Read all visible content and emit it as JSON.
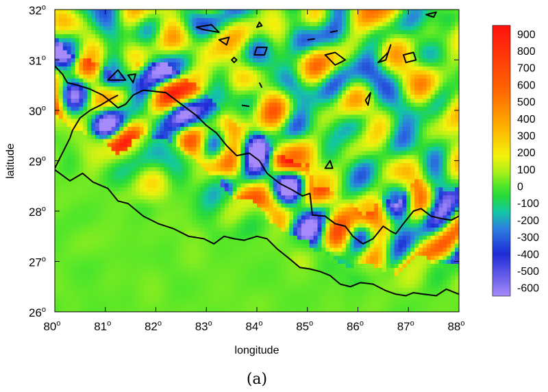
{
  "chart_data": {
    "type": "heatmap",
    "title": "",
    "caption": "(a)",
    "xlabel": "longitude",
    "ylabel": "latitude",
    "xlim": [
      80,
      88
    ],
    "ylim": [
      26,
      32
    ],
    "x_ticks": [
      {
        "value": 80,
        "label": "80",
        "sup": "o"
      },
      {
        "value": 81,
        "label": "81",
        "sup": "o"
      },
      {
        "value": 82,
        "label": "82",
        "sup": "o"
      },
      {
        "value": 83,
        "label": "83",
        "sup": "o"
      },
      {
        "value": 84,
        "label": "84",
        "sup": "o"
      },
      {
        "value": 85,
        "label": "85",
        "sup": "o"
      },
      {
        "value": 86,
        "label": "86",
        "sup": "o"
      },
      {
        "value": 87,
        "label": "87",
        "sup": "o"
      },
      {
        "value": 88,
        "label": "88",
        "sup": "o"
      }
    ],
    "y_ticks": [
      {
        "value": 26,
        "label": "26",
        "sup": "o"
      },
      {
        "value": 27,
        "label": "27",
        "sup": "o"
      },
      {
        "value": 28,
        "label": "28",
        "sup": "o"
      },
      {
        "value": 29,
        "label": "29",
        "sup": "o"
      },
      {
        "value": 30,
        "label": "30",
        "sup": "o"
      },
      {
        "value": 31,
        "label": "31",
        "sup": "o"
      },
      {
        "value": 32,
        "label": "32",
        "sup": "o"
      }
    ],
    "colorbar": {
      "min": -650,
      "max": 950,
      "labels": [
        "900",
        "800",
        "700",
        "600",
        "500",
        "400",
        "300",
        "200",
        "100",
        "0",
        "-100",
        "-200",
        "-300",
        "-400",
        "-500",
        "-600"
      ],
      "label_values": [
        900,
        800,
        700,
        600,
        500,
        400,
        300,
        200,
        100,
        0,
        -100,
        -200,
        -300,
        -400,
        -500,
        -600
      ],
      "colormap": [
        {
          "v": -650,
          "c": "#a78bfa"
        },
        {
          "v": -400,
          "c": "#1d2bd6"
        },
        {
          "v": -250,
          "c": "#2d7fe0"
        },
        {
          "v": -150,
          "c": "#12c8a0"
        },
        {
          "v": -60,
          "c": "#27d93a"
        },
        {
          "v": 0,
          "c": "#4fe62a"
        },
        {
          "v": 80,
          "c": "#a8f01a"
        },
        {
          "v": 180,
          "c": "#f4f20c"
        },
        {
          "v": 350,
          "c": "#ffb000"
        },
        {
          "v": 550,
          "c": "#ff6a00"
        },
        {
          "v": 950,
          "c": "#ff1010"
        }
      ]
    },
    "field": {
      "baseline": 20,
      "grid_resolution": 0.08,
      "description_free": true
    },
    "boundaries": [
      {
        "name": "",
        "points": [
          [
            80.0,
            30.88
          ],
          [
            80.15,
            30.72
          ],
          [
            80.25,
            30.55
          ],
          [
            80.45,
            30.5
          ],
          [
            80.7,
            30.42
          ],
          [
            80.95,
            30.3
          ],
          [
            81.1,
            30.18
          ],
          [
            81.25,
            30.05
          ],
          [
            81.4,
            30.12
          ],
          [
            81.55,
            30.3
          ],
          [
            81.75,
            30.4
          ],
          [
            81.95,
            30.38
          ],
          [
            82.2,
            30.35
          ],
          [
            82.4,
            30.2
          ],
          [
            82.6,
            30.05
          ],
          [
            82.8,
            29.9
          ],
          [
            83.0,
            29.7
          ],
          [
            83.2,
            29.55
          ],
          [
            83.4,
            29.3
          ],
          [
            83.6,
            29.1
          ],
          [
            83.85,
            29.15
          ],
          [
            84.05,
            29.0
          ],
          [
            84.2,
            28.75
          ],
          [
            84.45,
            28.55
          ],
          [
            84.7,
            28.42
          ],
          [
            84.9,
            28.3
          ],
          [
            85.05,
            28.35
          ],
          [
            85.1,
            27.92
          ],
          [
            85.35,
            27.9
          ],
          [
            85.55,
            27.75
          ],
          [
            85.75,
            27.7
          ],
          [
            85.9,
            27.5
          ],
          [
            86.1,
            27.35
          ],
          [
            86.3,
            27.45
          ],
          [
            86.5,
            27.7
          ],
          [
            86.65,
            27.6
          ],
          [
            86.75,
            27.55
          ],
          [
            86.9,
            27.75
          ],
          [
            87.1,
            28.0
          ],
          [
            87.25,
            28.05
          ],
          [
            87.45,
            27.9
          ],
          [
            87.65,
            27.85
          ],
          [
            87.85,
            27.82
          ],
          [
            88.0,
            27.9
          ]
        ]
      },
      {
        "name": "",
        "points": [
          [
            80.0,
            28.85
          ],
          [
            80.1,
            29.05
          ],
          [
            80.2,
            29.25
          ],
          [
            80.3,
            29.45
          ],
          [
            80.35,
            29.6
          ],
          [
            80.5,
            29.85
          ],
          [
            80.7,
            30.0
          ],
          [
            80.9,
            30.1
          ],
          [
            81.1,
            30.22
          ],
          [
            81.25,
            30.3
          ]
        ]
      },
      {
        "name": "",
        "points": [
          [
            80.0,
            28.82
          ],
          [
            80.3,
            28.6
          ],
          [
            80.55,
            28.75
          ],
          [
            80.75,
            28.58
          ],
          [
            81.05,
            28.45
          ],
          [
            81.25,
            28.2
          ],
          [
            81.45,
            28.15
          ],
          [
            81.75,
            27.9
          ],
          [
            82.05,
            27.75
          ],
          [
            82.35,
            27.65
          ],
          [
            82.65,
            27.5
          ],
          [
            82.95,
            27.45
          ],
          [
            83.15,
            27.35
          ],
          [
            83.35,
            27.5
          ],
          [
            83.55,
            27.45
          ],
          [
            83.75,
            27.42
          ],
          [
            84.0,
            27.5
          ],
          [
            84.2,
            27.45
          ],
          [
            84.4,
            27.25
          ],
          [
            84.65,
            27.05
          ],
          [
            84.85,
            26.88
          ],
          [
            85.05,
            26.85
          ],
          [
            85.25,
            26.8
          ],
          [
            85.45,
            26.72
          ],
          [
            85.65,
            26.55
          ],
          [
            85.85,
            26.5
          ],
          [
            86.05,
            26.58
          ],
          [
            86.3,
            26.55
          ],
          [
            86.55,
            26.42
          ],
          [
            86.75,
            26.35
          ],
          [
            86.95,
            26.32
          ],
          [
            87.1,
            26.38
          ],
          [
            87.3,
            26.35
          ],
          [
            87.55,
            26.32
          ],
          [
            87.75,
            26.45
          ],
          [
            88.0,
            26.35
          ]
        ]
      },
      {
        "name": "",
        "points": [
          [
            82.8,
            31.65
          ],
          [
            83.1,
            31.7
          ],
          [
            83.25,
            31.55
          ],
          [
            82.95,
            31.6
          ],
          [
            82.8,
            31.65
          ]
        ],
        "closed": true
      },
      {
        "name": "",
        "points": [
          [
            83.25,
            31.4
          ],
          [
            83.45,
            31.45
          ],
          [
            83.4,
            31.3
          ],
          [
            83.25,
            31.4
          ]
        ],
        "closed": true
      },
      {
        "name": "",
        "points": [
          [
            83.55,
            30.95
          ],
          [
            83.6,
            31.0
          ],
          [
            83.55,
            31.05
          ],
          [
            83.5,
            31.0
          ],
          [
            83.55,
            30.95
          ]
        ],
        "closed": true
      },
      {
        "name": "",
        "points": [
          [
            84.0,
            31.25
          ],
          [
            84.2,
            31.25
          ],
          [
            84.15,
            31.1
          ],
          [
            83.95,
            31.1
          ],
          [
            84.0,
            31.25
          ]
        ],
        "closed": true
      },
      {
        "name": "",
        "points": [
          [
            85.35,
            31.1
          ],
          [
            85.55,
            31.15
          ],
          [
            85.75,
            31.0
          ],
          [
            85.55,
            30.9
          ],
          [
            85.35,
            31.1
          ]
        ],
        "closed": true
      },
      {
        "name": "",
        "points": [
          [
            86.4,
            30.95
          ],
          [
            86.6,
            31.15
          ],
          [
            86.65,
            31.3
          ],
          [
            86.55,
            31.0
          ],
          [
            86.4,
            30.95
          ]
        ],
        "closed": true
      },
      {
        "name": "",
        "points": [
          [
            86.9,
            31.1
          ],
          [
            87.1,
            31.15
          ],
          [
            87.15,
            31.0
          ],
          [
            86.95,
            30.95
          ],
          [
            86.9,
            31.1
          ]
        ],
        "closed": true
      },
      {
        "name": "",
        "points": [
          [
            81.05,
            30.6
          ],
          [
            81.25,
            30.8
          ],
          [
            81.4,
            30.6
          ],
          [
            81.05,
            30.6
          ]
        ],
        "closed": true
      },
      {
        "name": "",
        "points": [
          [
            81.45,
            30.7
          ],
          [
            81.6,
            30.72
          ],
          [
            81.55,
            30.55
          ],
          [
            81.45,
            30.7
          ]
        ],
        "closed": true
      },
      {
        "name": "",
        "points": [
          [
            87.35,
            31.9
          ],
          [
            87.55,
            31.95
          ],
          [
            87.5,
            31.85
          ],
          [
            87.35,
            31.9
          ]
        ],
        "closed": true
      },
      {
        "name": "",
        "points": [
          [
            86.15,
            30.2
          ],
          [
            86.25,
            30.35
          ],
          [
            86.2,
            30.1
          ],
          [
            86.15,
            30.2
          ]
        ],
        "closed": true
      },
      {
        "name": "",
        "points": [
          [
            85.35,
            28.85
          ],
          [
            85.45,
            29.0
          ],
          [
            85.5,
            28.85
          ],
          [
            85.35,
            28.85
          ]
        ],
        "closed": true
      },
      {
        "name": "",
        "points": [
          [
            85.0,
            31.4
          ],
          [
            85.15,
            31.42
          ]
        ]
      },
      {
        "name": "",
        "points": [
          [
            85.45,
            31.55
          ],
          [
            85.6,
            31.58
          ]
        ]
      },
      {
        "name": "",
        "points": [
          [
            83.7,
            30.1
          ],
          [
            83.85,
            30.08
          ]
        ]
      },
      {
        "name": "",
        "points": [
          [
            84.0,
            31.65
          ],
          [
            84.05,
            31.75
          ],
          [
            84.1,
            31.68
          ],
          [
            84.0,
            31.65
          ]
        ],
        "closed": true
      },
      {
        "name": "",
        "points": [
          [
            84.05,
            30.55
          ],
          [
            84.1,
            30.45
          ]
        ]
      }
    ]
  }
}
